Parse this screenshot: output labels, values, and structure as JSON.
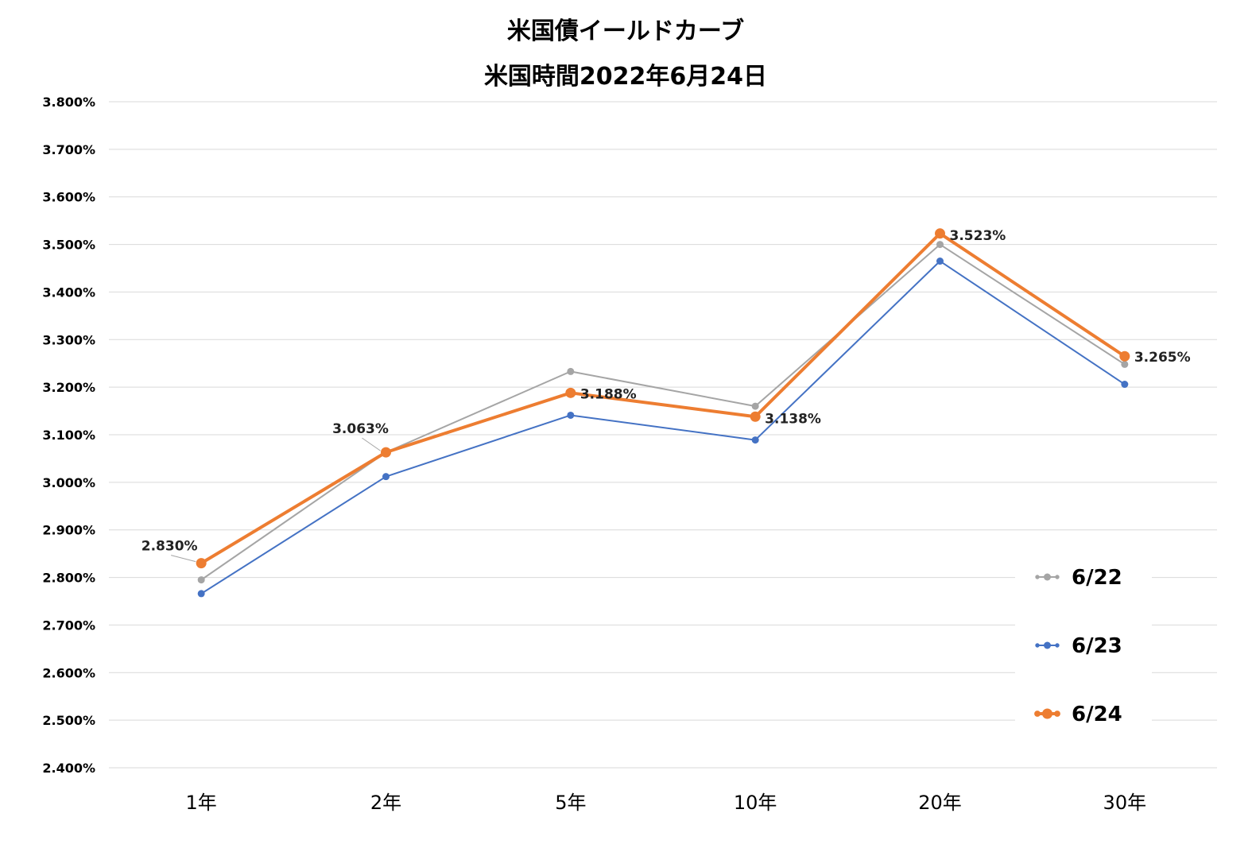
{
  "chart_data": {
    "type": "line",
    "title": "米国債イールドカーブ",
    "subtitle": "米国時間2022年6月24日",
    "categories": [
      "1年",
      "2年",
      "5年",
      "10年",
      "20年",
      "30年"
    ],
    "ylim": [
      2.4,
      3.8
    ],
    "yticks": [
      "3.800%",
      "3.700%",
      "3.600%",
      "3.500%",
      "3.400%",
      "3.300%",
      "3.200%",
      "3.100%",
      "3.000%",
      "2.900%",
      "2.800%",
      "2.700%",
      "2.600%",
      "2.500%",
      "2.400%"
    ],
    "ytick_values": [
      3.8,
      3.7,
      3.6,
      3.5,
      3.4,
      3.3,
      3.2,
      3.1,
      3.0,
      2.9,
      2.8,
      2.7,
      2.6,
      2.5,
      2.4
    ],
    "grid": true,
    "legend_position": "bottom-right",
    "series": [
      {
        "name": "6/22",
        "color": "#a5a5a5",
        "values": [
          2.795,
          3.063,
          3.233,
          3.16,
          3.5,
          3.248
        ]
      },
      {
        "name": "6/23",
        "color": "#4472c4",
        "values": [
          2.766,
          3.012,
          3.141,
          3.089,
          3.465,
          3.206
        ]
      },
      {
        "name": "6/24",
        "color": "#ed7d31",
        "values": [
          2.83,
          3.063,
          3.188,
          3.138,
          3.523,
          3.265
        ]
      }
    ],
    "data_labels": [
      "2.830%",
      "3.063%",
      "3.188%",
      "3.138%",
      "3.523%",
      "3.265%"
    ]
  }
}
